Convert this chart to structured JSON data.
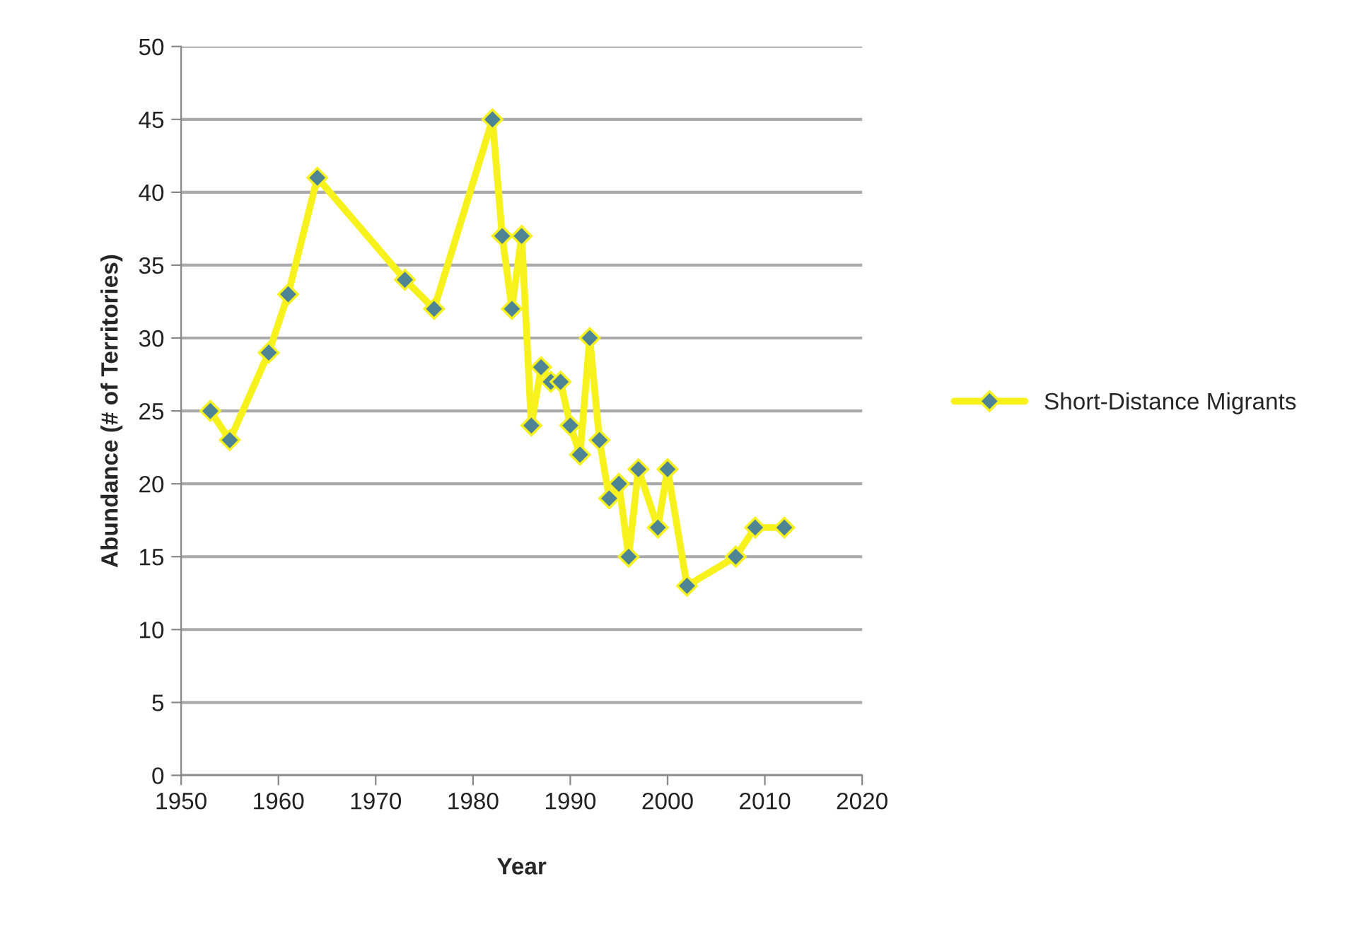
{
  "chart_data": {
    "type": "line",
    "xlabel": "Year",
    "ylabel": "Abundance (# of Territories)",
    "x": [
      1953,
      1955,
      1959,
      1961,
      1964,
      1973,
      1976,
      1982,
      1983,
      1984,
      1985,
      1986,
      1987,
      1988,
      1989,
      1990,
      1991,
      1992,
      1993,
      1994,
      1995,
      1996,
      1997,
      1999,
      2000,
      2002,
      2007,
      2009,
      2012
    ],
    "series": [
      {
        "name": "Short-Distance Migrants",
        "color": "#f7f21c",
        "values": [
          25,
          23,
          29,
          33,
          41,
          34,
          32,
          45,
          37,
          32,
          37,
          24,
          28,
          27,
          27,
          24,
          22,
          30,
          23,
          19,
          20,
          15,
          21,
          17,
          21,
          13,
          15,
          17,
          17
        ]
      }
    ],
    "xlim": [
      1950,
      2020
    ],
    "xticks": [
      1950,
      1960,
      1970,
      1980,
      1990,
      2000,
      2010,
      2020
    ],
    "ylim": [
      0,
      50
    ],
    "yticks": [
      0,
      5,
      10,
      15,
      20,
      25,
      30,
      35,
      40,
      45,
      50
    ],
    "grid": "y",
    "legend": "right",
    "marker": "diamond",
    "line_style": "solid"
  }
}
